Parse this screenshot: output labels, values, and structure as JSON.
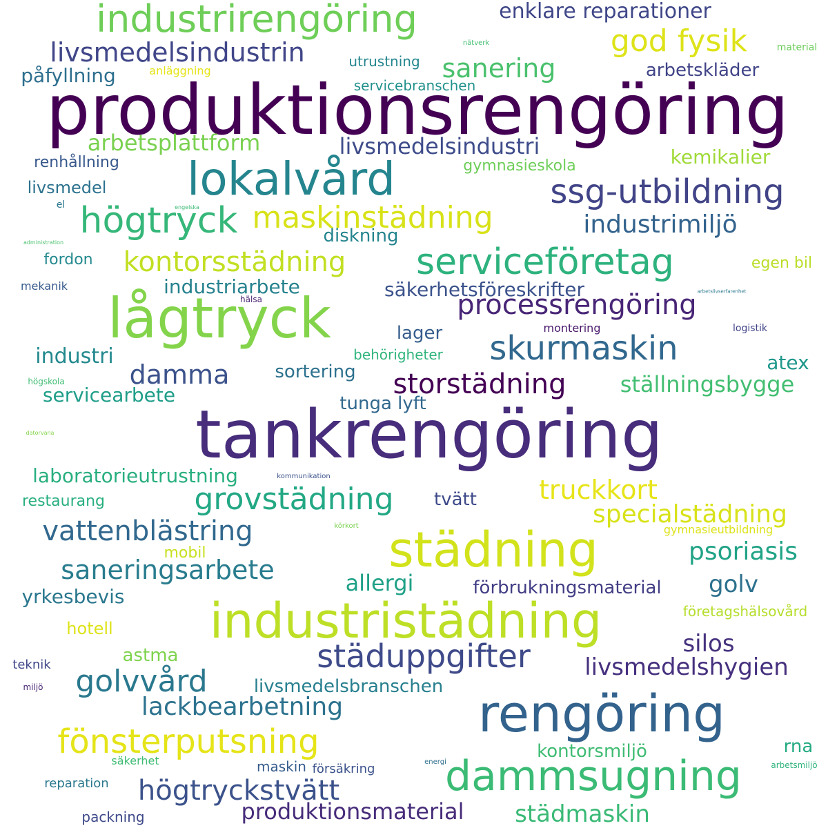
{
  "words": [
    {
      "text": "produktionsrengöring",
      "color": "#440154",
      "size": 10
    },
    {
      "text": "tankrengöring",
      "color": "#472d7b",
      "size": 9.6
    },
    {
      "text": "lågtryck",
      "color": "#84d44b",
      "size": 8
    },
    {
      "text": "rengöring",
      "color": "#33638d",
      "size": 7.4
    },
    {
      "text": "industristädning",
      "color": "#bddf26",
      "size": 7
    },
    {
      "text": "städning",
      "color": "#d2e21b",
      "size": 7
    },
    {
      "text": "lokalvård",
      "color": "#25858e",
      "size": 6.6
    },
    {
      "text": "dammsugning",
      "color": "#3bbb75",
      "size": 6
    },
    {
      "text": "industrirengöring",
      "color": "#6ece58",
      "size": 5.4
    },
    {
      "text": "serviceföretag",
      "color": "#2db27d",
      "size": 5.2
    },
    {
      "text": "högtryck",
      "color": "#35b779",
      "size": 5.2
    },
    {
      "text": "ssg-utbildning",
      "color": "#414487",
      "size": 4.8
    },
    {
      "text": "skurmaskin",
      "color": "#31688e",
      "size": 4.8
    },
    {
      "text": "fönsterputsning",
      "color": "#e5e419",
      "size": 4.8
    },
    {
      "text": "städuppgifter",
      "color": "#3e4a89",
      "size": 4.6
    },
    {
      "text": "god fysik",
      "color": "#dde318",
      "size": 4.4
    },
    {
      "text": "maskinstädning",
      "color": "#d8e219",
      "size": 4.4
    },
    {
      "text": "grovstädning",
      "color": "#22a884",
      "size": 4.4
    },
    {
      "text": "golvvård",
      "color": "#2a788e",
      "size": 4.4
    },
    {
      "text": "processrengöring",
      "color": "#482576",
      "size": 4
    },
    {
      "text": "storstädning",
      "color": "#440154",
      "size": 4
    },
    {
      "text": "kontorsstädning",
      "color": "#c2df23",
      "size": 4
    },
    {
      "text": "vattenblästring",
      "color": "#31688e",
      "size": 4
    },
    {
      "text": "högtryckstvätt",
      "color": "#3b528b",
      "size": 4
    },
    {
      "text": "livsmedelsindustrin",
      "color": "#404688",
      "size": 3.8
    },
    {
      "text": "sanering",
      "color": "#4ac16d",
      "size": 3.8
    },
    {
      "text": "truckkort",
      "color": "#e7e419",
      "size": 3.8
    },
    {
      "text": "saneringsarbete",
      "color": "#287c8e",
      "size": 3.8
    },
    {
      "text": "damma",
      "color": "#3b528b",
      "size": 3.8
    },
    {
      "text": "psoriasis",
      "color": "#20a386",
      "size": 3.6
    },
    {
      "text": "lackbearbetning",
      "color": "#2c728e",
      "size": 3.6
    },
    {
      "text": "industrimiljö",
      "color": "#33638d",
      "size": 3.6
    },
    {
      "text": "specialstädning",
      "color": "#d8e219",
      "size": 3.6
    },
    {
      "text": "livsmedelshygien",
      "color": "#46307e",
      "size": 3.4
    },
    {
      "text": "städmaskin",
      "color": "#3aba76",
      "size": 3.4
    },
    {
      "text": "silos",
      "color": "#46327e",
      "size": 3.4
    },
    {
      "text": "golv",
      "color": "#2d718e",
      "size": 3.4
    },
    {
      "text": "allergi",
      "color": "#1fa187",
      "size": 3.2
    },
    {
      "text": "produktionsmaterial",
      "color": "#472c7a",
      "size": 3.2
    },
    {
      "text": "livsmedelsindustri",
      "color": "#3e4c8a",
      "size": 3.2
    },
    {
      "text": "ställningsbygge",
      "color": "#42be71",
      "size": 3.2
    },
    {
      "text": "arbetsplattform",
      "color": "#7ad151",
      "size": 3.2
    },
    {
      "text": "enklare reparationer",
      "color": "#3f4788",
      "size": 3
    },
    {
      "text": "industri",
      "color": "#23898e",
      "size": 3
    },
    {
      "text": "atex",
      "color": "#1f978b",
      "size": 2.8
    },
    {
      "text": "kemikalier",
      "color": "#a0da39",
      "size": 2.8
    },
    {
      "text": "industriarbete",
      "color": "#26828e",
      "size": 2.8
    },
    {
      "text": "säkerhetsföreskrifter",
      "color": "#3b528b",
      "size": 2.8
    },
    {
      "text": "servicearbete",
      "color": "#1f9e89",
      "size": 2.8
    },
    {
      "text": "laboratorieutrustning",
      "color": "#29af7f",
      "size": 2.8
    },
    {
      "text": "yrkesbevis",
      "color": "#2a778e",
      "size": 2.8
    },
    {
      "text": "påfyllning",
      "color": "#2e6f8e",
      "size": 2.8
    },
    {
      "text": "arbetskläder",
      "color": "#414487",
      "size": 2.6
    },
    {
      "text": "kontorsmiljö",
      "color": "#3fbc73",
      "size": 2.6
    },
    {
      "text": "förbrukningsmaterial",
      "color": "#433e85",
      "size": 2.6
    },
    {
      "text": "livsmedelsbranschen",
      "color": "#277f8e",
      "size": 2.6
    },
    {
      "text": "tunga lyft",
      "color": "#31688e",
      "size": 2.6
    },
    {
      "text": "sortering",
      "color": "#2d718e",
      "size": 2.6
    },
    {
      "text": "lager",
      "color": "#365d8d",
      "size": 2.6
    },
    {
      "text": "diskning",
      "color": "#25858e",
      "size": 2.6
    },
    {
      "text": "tvätt",
      "color": "#3e4989",
      "size": 2.6
    },
    {
      "text": "rna",
      "color": "#25ab82",
      "size": 2.6
    },
    {
      "text": "astma",
      "color": "#7fd34e",
      "size": 2.6
    },
    {
      "text": "hotell",
      "color": "#dde318",
      "size": 2.4
    },
    {
      "text": "livsmedel",
      "color": "#2c728e",
      "size": 2.4
    },
    {
      "text": "restaurang",
      "color": "#29af7f",
      "size": 2.2
    },
    {
      "text": "fordon",
      "color": "#23898e",
      "size": 2.2
    },
    {
      "text": "renhållning",
      "color": "#38588c",
      "size": 2.2
    },
    {
      "text": "egen bil",
      "color": "#bade28",
      "size": 2.2
    },
    {
      "text": "gymnasieskola",
      "color": "#6ece58",
      "size": 2.2
    },
    {
      "text": "mobil",
      "color": "#c8e020",
      "size": 2.2
    },
    {
      "text": "maskin",
      "color": "#365c8d",
      "size": 2
    },
    {
      "text": "företagshälsovård",
      "color": "#b5de2b",
      "size": 2
    },
    {
      "text": "servicebranschen",
      "color": "#21918c",
      "size": 2
    },
    {
      "text": "utrustning",
      "color": "#24868e",
      "size": 2
    },
    {
      "text": "behörigheter",
      "color": "#2fb47c",
      "size": 2
    },
    {
      "text": "reparation",
      "color": "#2a788e",
      "size": 1.8
    },
    {
      "text": "packning",
      "color": "#3e4989",
      "size": 2
    },
    {
      "text": "teknik",
      "color": "#3f4788",
      "size": 1.8
    },
    {
      "text": "försäkring",
      "color": "#3b528b",
      "size": 1.8
    },
    {
      "text": "säkerhet",
      "color": "#3fbc73",
      "size": 1.6
    },
    {
      "text": "mekanik",
      "color": "#375b8d",
      "size": 1.6
    },
    {
      "text": "montering",
      "color": "#48186a",
      "size": 1.6
    },
    {
      "text": "anläggning",
      "color": "#e5e419",
      "size": 1.6
    },
    {
      "text": "gymnasieutbildning",
      "color": "#dde318",
      "size": 1.6
    },
    {
      "text": "material",
      "color": "#6ccd5a",
      "size": 1.4
    },
    {
      "text": "logistik",
      "color": "#404387",
      "size": 1.4
    },
    {
      "text": "el",
      "color": "#2a768e",
      "size": 1.4
    },
    {
      "text": "hälsa",
      "color": "#481f70",
      "size": 1.2
    },
    {
      "text": "högskola",
      "color": "#3fbc73",
      "size": 1.2
    },
    {
      "text": "miljö",
      "color": "#482576",
      "size": 1.2
    },
    {
      "text": "arbetsmiljö",
      "color": "#2eb37c",
      "size": 1.2
    },
    {
      "text": "nätverk",
      "color": "#42be71",
      "size": 1
    },
    {
      "text": "kommunikation",
      "color": "#3b528b",
      "size": 1
    },
    {
      "text": "körkort",
      "color": "#7ad151",
      "size": 1
    },
    {
      "text": "energi",
      "color": "#2e6e8e",
      "size": 1
    },
    {
      "text": "administration",
      "color": "#4ac16d",
      "size": 0.8
    },
    {
      "text": "engelska",
      "color": "#3aba76",
      "size": 0.8
    },
    {
      "text": "datorvana",
      "color": "#84d44b",
      "size": 0.8
    },
    {
      "text": "arbetslivserfarenhet",
      "color": "#2a788e",
      "size": 0.7
    }
  ]
}
